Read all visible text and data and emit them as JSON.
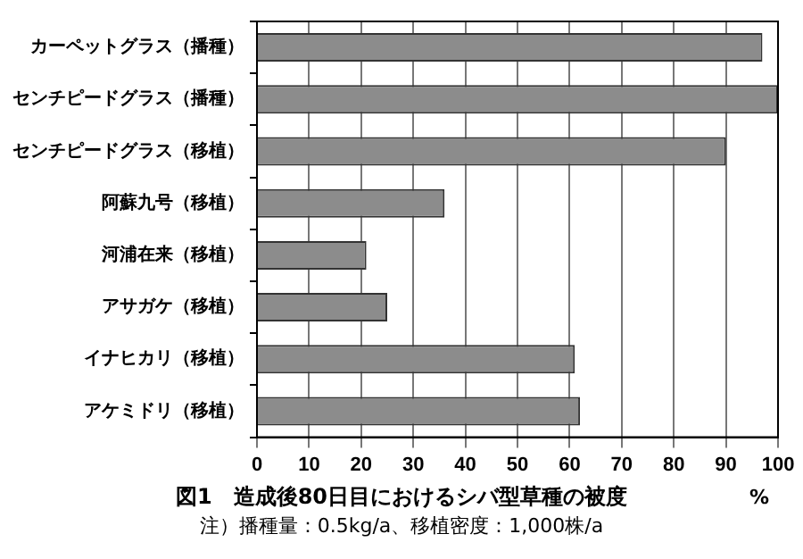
{
  "chart_data": {
    "type": "bar",
    "orientation": "horizontal",
    "title": "図1　造成後80日目におけるシバ型草種の被度",
    "xlabel": "%",
    "annotations": [
      "注）播種量：0.5kg/a、移植密度：1,000株/a"
    ],
    "categories": [
      "カーペットグラス（播種）",
      "センチピードグラス（播種）",
      "センチピードグラス（移植）",
      "阿蘇九号（移植）",
      "河浦在来（移植）",
      "アサガケ（移植）",
      "イナヒカリ（移植）",
      "アケミドリ（移植）"
    ],
    "values": [
      97,
      100,
      90,
      36,
      21,
      25,
      61,
      62
    ],
    "color": "#8c8c8c",
    "xlim": [
      0,
      100
    ],
    "xticks": [
      0,
      10,
      20,
      30,
      40,
      50,
      60,
      70,
      80,
      90,
      100
    ],
    "grid": "x",
    "legend": false
  }
}
